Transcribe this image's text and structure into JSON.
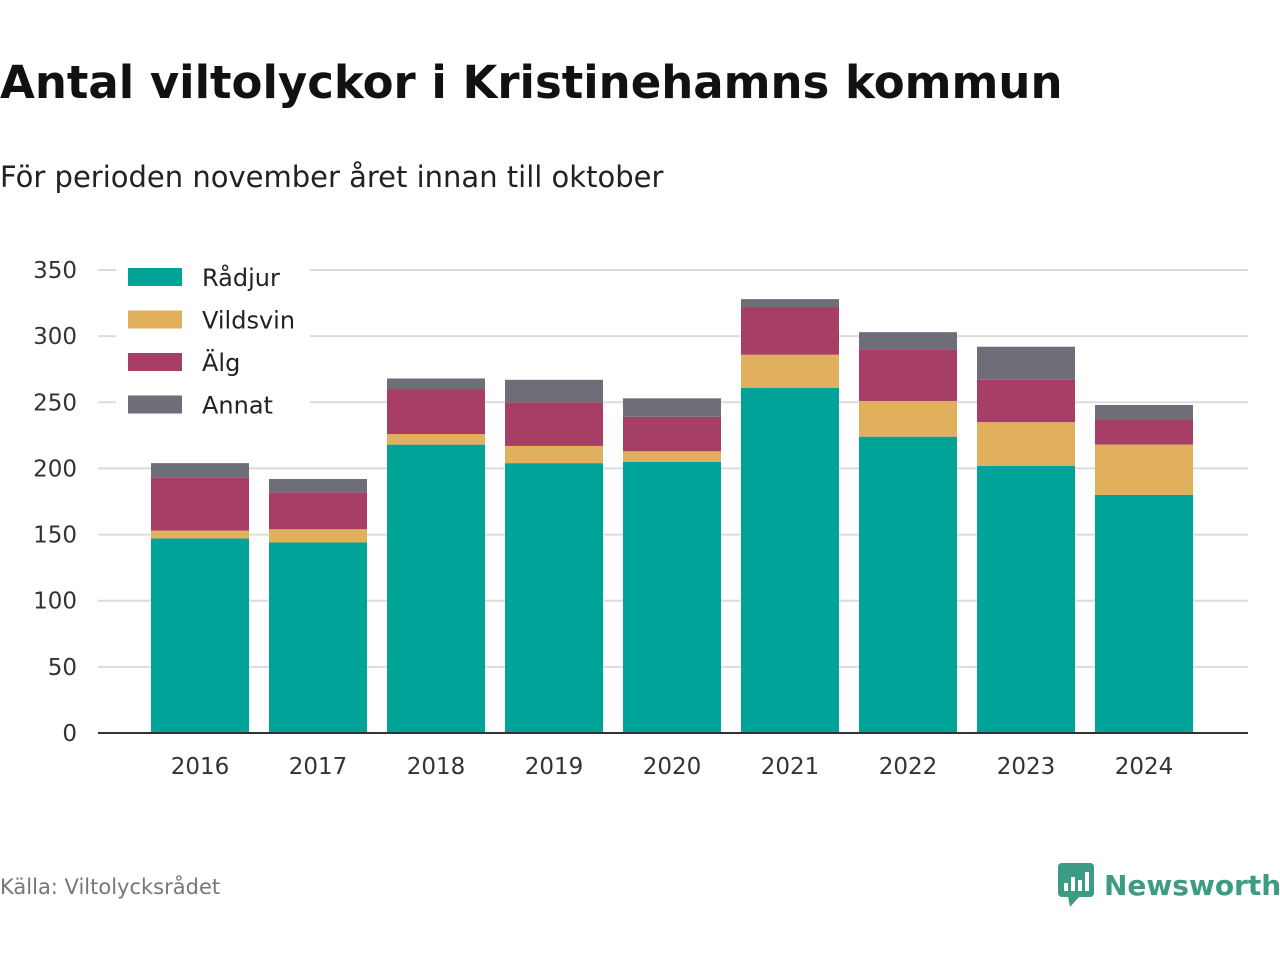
{
  "header": {
    "title": "Antal viltolyckor i Kristinehamns kommun",
    "subtitle": "För perioden november året innan till oktober"
  },
  "footer": {
    "source": "Källa: Viltolycksrådet",
    "brand": "Newsworthy",
    "brand_icon": "bar-chart-speech-bubble-icon",
    "brand_color": "#3d9a83"
  },
  "chart_data": {
    "type": "bar",
    "stacked": true,
    "title": "Antal viltolyckor i Kristinehamns kommun",
    "subtitle": "För perioden november året innan till oktober",
    "xlabel": "",
    "ylabel": "",
    "categories": [
      "2016",
      "2017",
      "2018",
      "2019",
      "2020",
      "2021",
      "2022",
      "2023",
      "2024"
    ],
    "ylim": [
      0,
      350
    ],
    "yticks": [
      0,
      50,
      100,
      150,
      200,
      250,
      300,
      350
    ],
    "grid": true,
    "legend_position": "top-left",
    "series": [
      {
        "name": "Rådjur",
        "color": "#00a398",
        "values": [
          147,
          144,
          218,
          204,
          205,
          261,
          224,
          202,
          180
        ]
      },
      {
        "name": "Vildsvin",
        "color": "#e0b05c",
        "values": [
          6,
          10,
          8,
          13,
          8,
          25,
          27,
          33,
          38
        ]
      },
      {
        "name": "Älg",
        "color": "#a63e65",
        "values": [
          40,
          28,
          34,
          33,
          26,
          36,
          39,
          32,
          19
        ]
      },
      {
        "name": "Annat",
        "color": "#6e6e78",
        "values": [
          11,
          10,
          8,
          17,
          14,
          6,
          13,
          25,
          11
        ]
      }
    ]
  }
}
